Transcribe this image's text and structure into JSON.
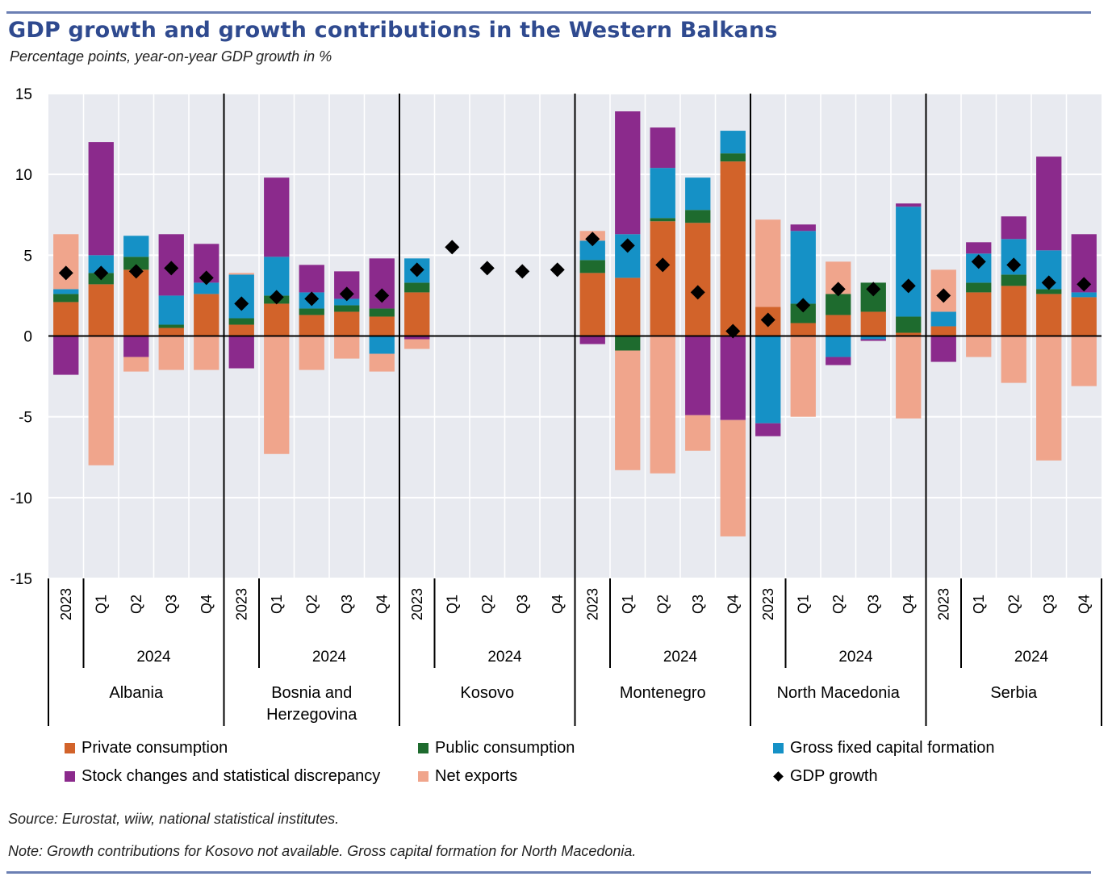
{
  "title": "GDP growth and growth contributions in the Western Balkans",
  "subtitle": "Percentage points, year-on-year GDP growth in %",
  "source": "Source: Eurostat, wiiw, national statistical institutes.",
  "note": "Note: Growth contributions for Kosovo not available. Gross capital formation for North Macedonia.",
  "colors": {
    "private": "#d2632a",
    "public": "#1e6b2e",
    "gfcf": "#1591c6",
    "stock": "#8b2a8c",
    "netexp": "#f0a58c",
    "gdp": "#000000",
    "plot_bg": "#e8eaf0",
    "rule": "#6b7fb3"
  },
  "legend": [
    {
      "key": "private",
      "label": "Private consumption",
      "type": "swatch"
    },
    {
      "key": "public",
      "label": "Public consumption",
      "type": "swatch"
    },
    {
      "key": "gfcf",
      "label": "Gross fixed capital formation",
      "type": "swatch"
    },
    {
      "key": "stock",
      "label": "Stock changes and statistical discrepancy",
      "type": "swatch"
    },
    {
      "key": "netexp",
      "label": "Net exports",
      "type": "swatch"
    },
    {
      "key": "gdp",
      "label": "GDP growth",
      "type": "diamond"
    }
  ],
  "chart_data": {
    "type": "bar",
    "stacked": true,
    "ylim": [
      -15,
      15
    ],
    "yticks": [
      "15",
      "10",
      "5",
      "0",
      "-5",
      "-10",
      "-15"
    ],
    "grid": true,
    "legend_position": "bottom",
    "year_label": "2024",
    "period_labels": [
      "2023",
      "Q1",
      "Q2",
      "Q3",
      "Q4"
    ],
    "series_names": {
      "private": "Private consumption",
      "public": "Public consumption",
      "gfcf": "Gross fixed capital formation",
      "stock": "Stock changes and statistical discrepancy",
      "netexp": "Net exports",
      "gdp": "GDP growth"
    },
    "groups": [
      {
        "country": "Albania",
        "periods": [
          {
            "period": "2023",
            "private": 2.1,
            "public": 0.5,
            "gfcf": 0.3,
            "stock": -2.4,
            "netexp": 3.4,
            "gdp": 3.9
          },
          {
            "period": "Q1",
            "private": 3.2,
            "public": 0.7,
            "gfcf": 1.1,
            "stock": 7.0,
            "netexp": -8.0,
            "gdp": 3.9
          },
          {
            "period": "Q2",
            "private": 4.1,
            "public": 0.8,
            "gfcf": 1.3,
            "stock": -1.3,
            "netexp": -0.9,
            "gdp": 4.0
          },
          {
            "period": "Q3",
            "private": 0.5,
            "public": 0.2,
            "gfcf": 1.8,
            "stock": 3.8,
            "netexp": -2.1,
            "gdp": 4.2
          },
          {
            "period": "Q4",
            "private": 2.6,
            "public": 0.0,
            "gfcf": 0.7,
            "stock": 2.4,
            "netexp": -2.1,
            "gdp": 3.6
          }
        ]
      },
      {
        "country": "Bosnia and Herzegovina",
        "periods": [
          {
            "period": "2023",
            "private": 0.7,
            "public": 0.4,
            "gfcf": 2.7,
            "stock": -2.0,
            "netexp": 0.1,
            "gdp": 2.0
          },
          {
            "period": "Q1",
            "private": 2.0,
            "public": 0.5,
            "gfcf": 2.4,
            "stock": 4.9,
            "netexp": -7.3,
            "gdp": 2.4
          },
          {
            "period": "Q2",
            "private": 1.3,
            "public": 0.4,
            "gfcf": 1.0,
            "stock": 1.7,
            "netexp": -2.1,
            "gdp": 2.3
          },
          {
            "period": "Q3",
            "private": 1.5,
            "public": 0.4,
            "gfcf": 0.4,
            "stock": 1.7,
            "netexp": -1.4,
            "gdp": 2.6
          },
          {
            "period": "Q4",
            "private": 1.2,
            "public": 0.5,
            "gfcf": -1.1,
            "stock": 3.1,
            "netexp": -1.1,
            "gdp": 2.5
          }
        ]
      },
      {
        "country": "Kosovo",
        "periods": [
          {
            "period": "2023",
            "private": 2.7,
            "public": 0.6,
            "gfcf": 1.5,
            "stock": -0.2,
            "netexp": -0.6,
            "gdp": 4.1
          },
          {
            "period": "Q1",
            "gdp": 5.5
          },
          {
            "period": "Q2",
            "gdp": 4.2
          },
          {
            "period": "Q3",
            "gdp": 4.0
          },
          {
            "period": "Q4",
            "gdp": 4.1
          }
        ]
      },
      {
        "country": "Montenegro",
        "periods": [
          {
            "period": "2023",
            "private": 3.9,
            "public": 0.8,
            "gfcf": 1.2,
            "stock": -0.5,
            "netexp": 0.6,
            "gdp": 6.0
          },
          {
            "period": "Q1",
            "private": 3.6,
            "public": -0.9,
            "gfcf": 2.7,
            "stock": 7.6,
            "netexp": -7.4,
            "gdp": 5.6
          },
          {
            "period": "Q2",
            "private": 7.1,
            "public": 0.2,
            "gfcf": 3.1,
            "stock": 2.5,
            "netexp": -8.5,
            "gdp": 4.4
          },
          {
            "period": "Q3",
            "private": 7.0,
            "public": 0.8,
            "gfcf": 2.0,
            "stock": -4.9,
            "netexp": -2.2,
            "gdp": 2.7
          },
          {
            "period": "Q4",
            "private": 10.8,
            "public": 0.5,
            "gfcf": 1.4,
            "stock": -5.2,
            "netexp": -7.2,
            "gdp": 0.3
          }
        ]
      },
      {
        "country": "North Macedonia",
        "periods": [
          {
            "period": "2023",
            "private": 1.8,
            "public": 0.0,
            "gfcf": -5.4,
            "stock": -0.8,
            "netexp": 5.4,
            "gdp": 1.0
          },
          {
            "period": "Q1",
            "private": 0.8,
            "public": 1.2,
            "gfcf": 4.5,
            "stock": 0.4,
            "netexp": -5.0,
            "gdp": 1.9
          },
          {
            "period": "Q2",
            "private": 1.3,
            "public": 1.3,
            "gfcf": -1.3,
            "stock": -0.5,
            "netexp": 2.0,
            "gdp": 2.9
          },
          {
            "period": "Q3",
            "private": 1.5,
            "public": 1.8,
            "gfcf": -0.2,
            "stock": -0.1,
            "netexp": 0.0,
            "gdp": 2.9
          },
          {
            "period": "Q4",
            "private": 0.2,
            "public": 1.0,
            "gfcf": 6.8,
            "stock": 0.2,
            "netexp": -5.1,
            "gdp": 3.1
          }
        ]
      },
      {
        "country": "Serbia",
        "periods": [
          {
            "period": "2023",
            "private": 0.6,
            "public": 0.0,
            "gfcf": 0.9,
            "stock": -1.6,
            "netexp": 2.6,
            "gdp": 2.5
          },
          {
            "period": "Q1",
            "private": 2.7,
            "public": 0.6,
            "gfcf": 1.8,
            "stock": 0.7,
            "netexp": -1.3,
            "gdp": 4.6
          },
          {
            "period": "Q2",
            "private": 3.1,
            "public": 0.7,
            "gfcf": 2.2,
            "stock": 1.4,
            "netexp": -2.9,
            "gdp": 4.4
          },
          {
            "period": "Q3",
            "private": 2.6,
            "public": 0.3,
            "gfcf": 2.4,
            "stock": 5.8,
            "netexp": -7.7,
            "gdp": 3.3
          },
          {
            "period": "Q4",
            "private": 2.4,
            "public": 0.0,
            "gfcf": 0.3,
            "stock": 3.6,
            "netexp": -3.1,
            "gdp": 3.2
          }
        ]
      }
    ]
  }
}
